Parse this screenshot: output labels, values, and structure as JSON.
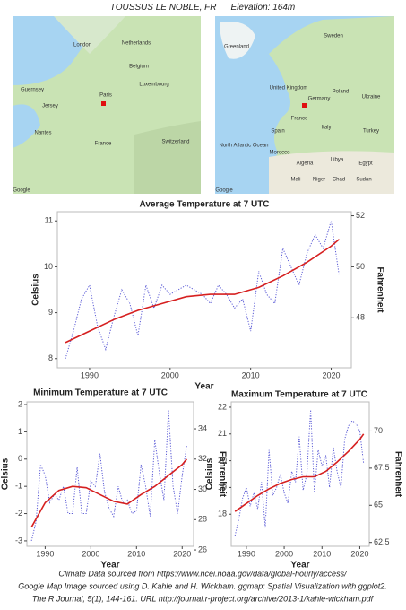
{
  "header": {
    "station": "TOUSSUS LE NOBLE, FR",
    "elevation": "Elevation: 164m"
  },
  "maps": [
    {
      "labels": [
        "London",
        "Netherlands",
        "Belgium",
        "Luxembourg",
        "Guernsey",
        "Jersey",
        "Paris",
        "France",
        "Nantes",
        "Switzerland",
        "Google"
      ]
    },
    {
      "labels": [
        "Greenland",
        "Sweden",
        "United Kingdom",
        "Germany",
        "Poland",
        "Ukraine",
        "France",
        "Spain",
        "Italy",
        "Turkey",
        "North Atlantic Ocean",
        "Morocco",
        "Algeria",
        "Libya",
        "Egypt",
        "Mali",
        "Niger",
        "Chad",
        "Sudan",
        "Google"
      ]
    }
  ],
  "chart_data": [
    {
      "type": "line",
      "title": "Average Temperature at 7 UTC",
      "x_label": "Year",
      "y_label": "Celsius",
      "y2_label": "Fahrenheit",
      "x": [
        1987,
        1988,
        1989,
        1990,
        1991,
        1992,
        1993,
        1994,
        1995,
        1996,
        1997,
        1998,
        1999,
        2000,
        2001,
        2002,
        2003,
        2004,
        2005,
        2006,
        2007,
        2008,
        2009,
        2010,
        2011,
        2012,
        2013,
        2014,
        2015,
        2016,
        2017,
        2018,
        2019,
        2020,
        2021
      ],
      "xlim": [
        1986,
        2022.5
      ],
      "xticks": [
        1990,
        2000,
        2010,
        2020
      ],
      "ylim": [
        7.8,
        11.2
      ],
      "yticks": [
        8,
        9,
        10,
        11
      ],
      "y2lim": [
        46.04,
        52.16
      ],
      "y2ticks": [
        48,
        50,
        52
      ],
      "series": [
        {
          "style": "dotted",
          "color": "#5b5bd6",
          "values": [
            8.0,
            8.6,
            9.3,
            9.6,
            8.7,
            8.2,
            8.9,
            9.5,
            9.2,
            8.5,
            9.6,
            9.1,
            9.6,
            9.4,
            9.5,
            9.6,
            9.5,
            9.4,
            9.2,
            9.6,
            9.4,
            9.1,
            9.3,
            8.6,
            9.9,
            9.4,
            9.2,
            10.4,
            10.0,
            9.6,
            10.3,
            10.7,
            10.4,
            11.0,
            9.8
          ]
        },
        {
          "style": "solid",
          "color": "#d62020",
          "x": [
            1987,
            1990,
            1993,
            1996,
            1999,
            2002,
            2005,
            2008,
            2011,
            2014,
            2017,
            2020,
            2021
          ],
          "values": [
            8.35,
            8.6,
            8.85,
            9.05,
            9.2,
            9.35,
            9.4,
            9.4,
            9.55,
            9.8,
            10.1,
            10.45,
            10.6
          ]
        }
      ]
    },
    {
      "type": "line",
      "title": "Minimum Temperature at 7 UTC",
      "x_label": "Year",
      "y_label": "Celsius",
      "y2_label": "Fahrenheit",
      "x": [
        1987,
        1988,
        1989,
        1990,
        1991,
        1992,
        1993,
        1994,
        1995,
        1996,
        1997,
        1998,
        1999,
        2000,
        2001,
        2002,
        2003,
        2004,
        2005,
        2006,
        2007,
        2008,
        2009,
        2010,
        2011,
        2012,
        2013,
        2014,
        2015,
        2016,
        2017,
        2018,
        2019,
        2020,
        2021
      ],
      "xlim": [
        1986,
        2022.5
      ],
      "xticks": [
        1990,
        2000,
        2010,
        2020
      ],
      "ylim": [
        -3.2,
        2.1
      ],
      "yticks": [
        -3,
        -2,
        -1,
        0,
        1,
        2
      ],
      "y2lim": [
        26.24,
        35.78
      ],
      "y2ticks": [
        26,
        28,
        30,
        32,
        34
      ],
      "series": [
        {
          "style": "dotted",
          "color": "#5b5bd6",
          "values": [
            -3.0,
            -2.3,
            -0.2,
            -0.6,
            -1.6,
            -1.3,
            -1.5,
            -1.0,
            -2.0,
            -2.0,
            -0.3,
            -2.0,
            -2.0,
            -0.8,
            -1.0,
            0.2,
            -1.2,
            -1.8,
            -2.1,
            -1.0,
            -1.6,
            -1.5,
            -2.0,
            -1.9,
            -0.2,
            -1.0,
            -2.1,
            0.7,
            -0.5,
            -1.5,
            1.8,
            -1.0,
            -2.0,
            -0.6,
            0.5
          ]
        },
        {
          "style": "solid",
          "color": "#d62020",
          "x": [
            1987,
            1990,
            1993,
            1996,
            1999,
            2002,
            2005,
            2008,
            2011,
            2014,
            2017,
            2020,
            2021
          ],
          "values": [
            -2.5,
            -1.6,
            -1.15,
            -1.0,
            -1.05,
            -1.3,
            -1.55,
            -1.65,
            -1.3,
            -1.0,
            -0.6,
            -0.2,
            0.0
          ]
        }
      ]
    },
    {
      "type": "line",
      "title": "Maximum Temperature at 7 UTC",
      "x_label": "Year",
      "y_label": "Celsius",
      "y2_label": "Fahrenheit",
      "x": [
        1987,
        1988,
        1989,
        1990,
        1991,
        1992,
        1993,
        1994,
        1995,
        1996,
        1997,
        1998,
        1999,
        2000,
        2001,
        2002,
        2003,
        2004,
        2005,
        2006,
        2007,
        2008,
        2009,
        2010,
        2011,
        2012,
        2013,
        2014,
        2015,
        2016,
        2017,
        2018,
        2019,
        2020,
        2021
      ],
      "xlim": [
        1986,
        2022.5
      ],
      "xticks": [
        1990,
        2000,
        2010,
        2020
      ],
      "ylim": [
        16.8,
        22.2
      ],
      "yticks": [
        18,
        19,
        20,
        21,
        22
      ],
      "y2lim": [
        62.24,
        71.96
      ],
      "y2ticks": [
        62.5,
        65.0,
        67.5,
        70.0
      ],
      "series": [
        {
          "style": "dotted",
          "color": "#5b5bd6",
          "values": [
            17.2,
            17.8,
            18.6,
            19.0,
            18.3,
            18.8,
            18.2,
            19.2,
            17.5,
            20.4,
            18.7,
            19.0,
            19.5,
            18.8,
            18.4,
            19.6,
            19.2,
            20.9,
            18.9,
            19.5,
            21.9,
            18.8,
            20.4,
            19.8,
            20.2,
            19.0,
            20.5,
            19.6,
            19.0,
            20.8,
            21.3,
            21.5,
            21.4,
            21.1,
            19.9
          ]
        },
        {
          "style": "solid",
          "color": "#d62020",
          "x": [
            1987,
            1990,
            1993,
            1996,
            1999,
            2002,
            2005,
            2008,
            2011,
            2014,
            2017,
            2020,
            2021
          ],
          "values": [
            18.1,
            18.4,
            18.7,
            18.95,
            19.15,
            19.3,
            19.4,
            19.4,
            19.6,
            19.95,
            20.35,
            20.8,
            21.0
          ]
        }
      ]
    }
  ],
  "footer": [
    "Climate Data sourced from https://www.ncei.noaa.gov/data/global-hourly/access/",
    "Google Map Image sourced using D. Kahle and H. Wickham. ggmap: Spatial Visualization with ggplot2.",
    "The R Journal, 5(1), 144-161. URL http://journal.r-project.org/archive/2013-1/kahle-wickham.pdf"
  ]
}
